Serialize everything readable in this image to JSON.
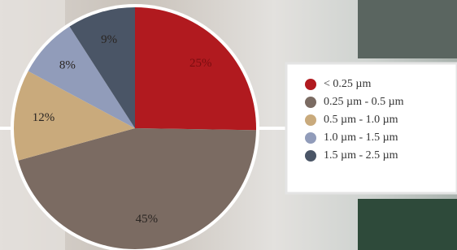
{
  "chart_data": {
    "type": "pie",
    "categories": [
      "< 0.25 µm",
      "0.25 µm - 0.5 µm",
      "0.5 µm - 1.0 µm",
      "1.0 µm - 1.5 µm",
      "1.5 µm - 2.5 µm"
    ],
    "values": [
      25,
      45,
      12,
      8,
      9
    ],
    "value_labels": [
      "25%",
      "45%",
      "12%",
      "8%",
      "9%"
    ],
    "colors": [
      "#b11a1f",
      "#7b6b62",
      "#c9aa7c",
      "#919cba",
      "#4a5566"
    ]
  }
}
